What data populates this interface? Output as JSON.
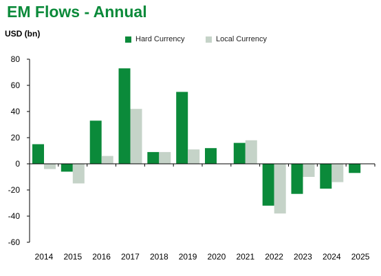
{
  "title": "EM Flows - Annual",
  "chart_data": {
    "type": "bar",
    "ylabel": "USD (bn)",
    "xlabel": "",
    "ylim": [
      -60,
      80
    ],
    "yticks": [
      80,
      60,
      40,
      20,
      0,
      -20,
      -40,
      -60
    ],
    "categories": [
      "2014",
      "2015",
      "2016",
      "2017",
      "2018",
      "2019",
      "2020",
      "2021",
      "2022",
      "2023",
      "2024",
      "2025"
    ],
    "series": [
      {
        "name": "Hard Currency",
        "color": "#0b8a3a",
        "values": [
          15,
          -6,
          33,
          73,
          9,
          55,
          12,
          16,
          -32,
          -23,
          -19,
          -7
        ]
      },
      {
        "name": "Local Currency",
        "color": "#c5d3c8",
        "values": [
          -4,
          -15,
          6,
          42,
          9,
          11,
          0,
          18,
          -38,
          -10,
          -14,
          0
        ]
      }
    ],
    "legend_position": "top-center",
    "grid": false
  }
}
